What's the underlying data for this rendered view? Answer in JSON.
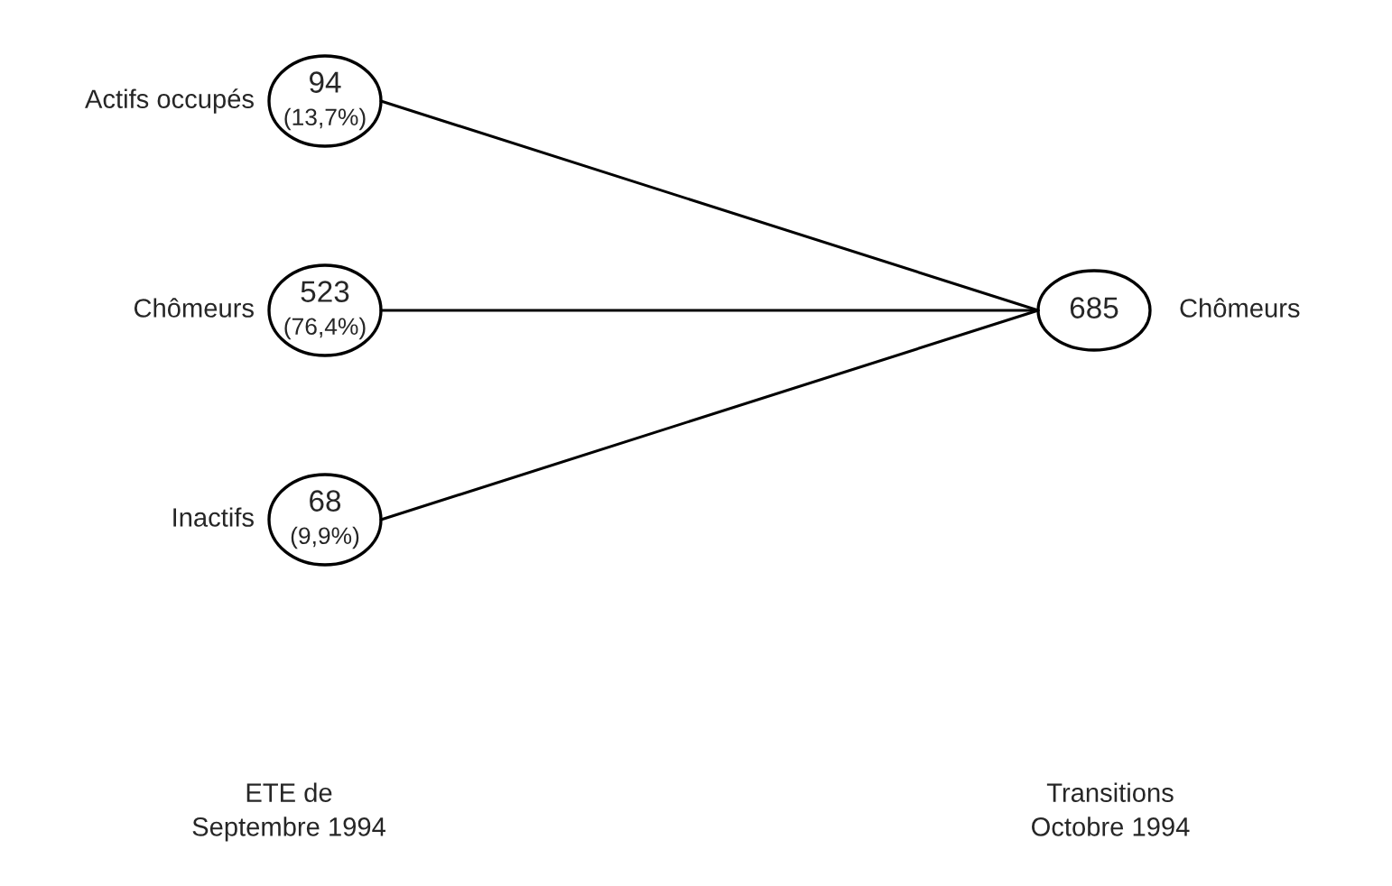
{
  "chart_data": {
    "type": "other",
    "categories": [
      "Actifs occupés",
      "Chômeurs",
      "Inactifs",
      "Chômeurs"
    ],
    "data_labels": true,
    "series": [
      {
        "values": [
          94,
          523,
          68,
          685
        ]
      },
      {
        "values": [
          13.7,
          76.4,
          9.9,
          null
        ],
        "value_labels": [
          "(13,7%)",
          "(76,4%)",
          "(9,9%)",
          null
        ]
      }
    ],
    "annotations": [
      "ETE de\nSeptembre 1994",
      "Transitions\nOctobre 1994"
    ]
  }
}
